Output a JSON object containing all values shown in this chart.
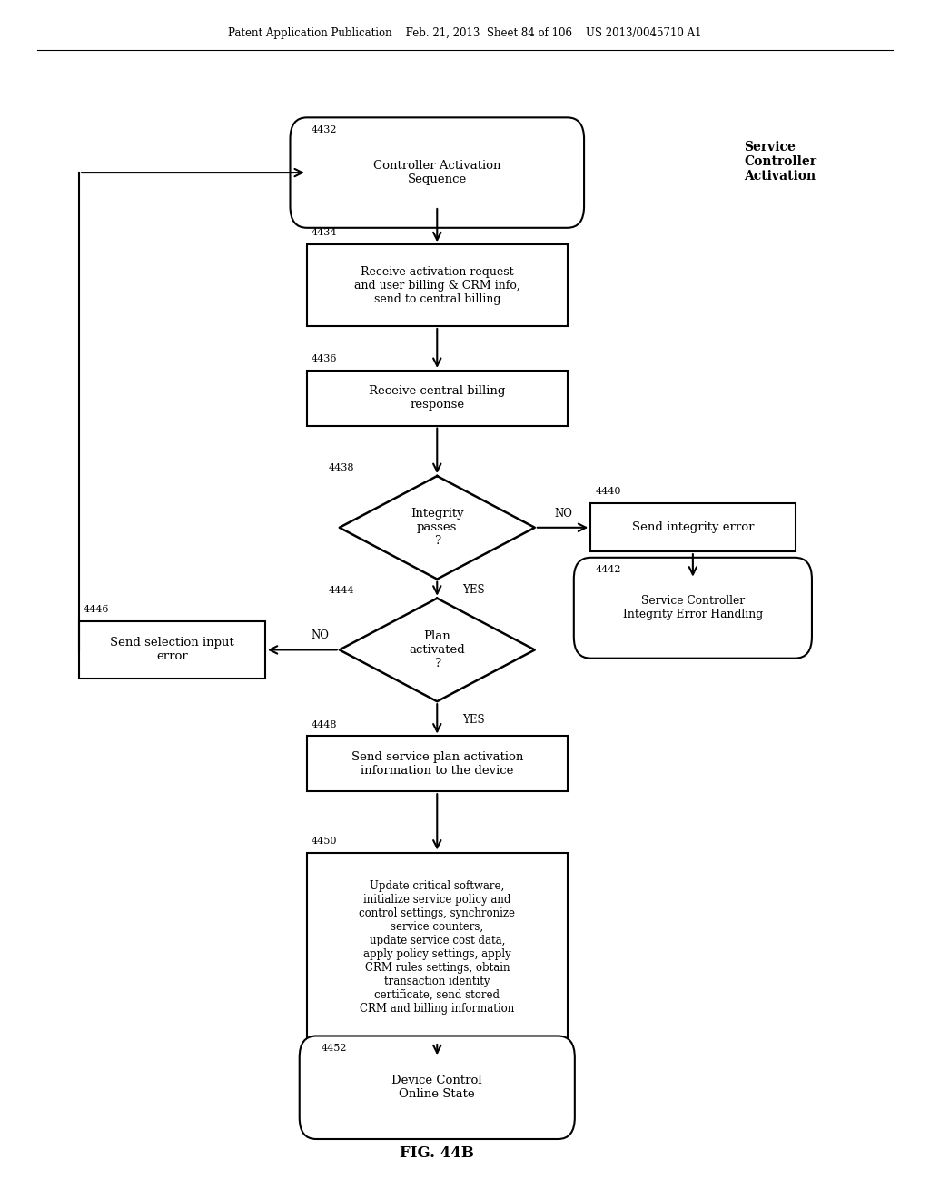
{
  "bg_color": "#ffffff",
  "header_text": "Patent Application Publication    Feb. 21, 2013  Sheet 84 of 106    US 2013/0045710 A1",
  "fig_label": "FIG. 44B",
  "service_controller_label": "Service\nController\nActivation"
}
